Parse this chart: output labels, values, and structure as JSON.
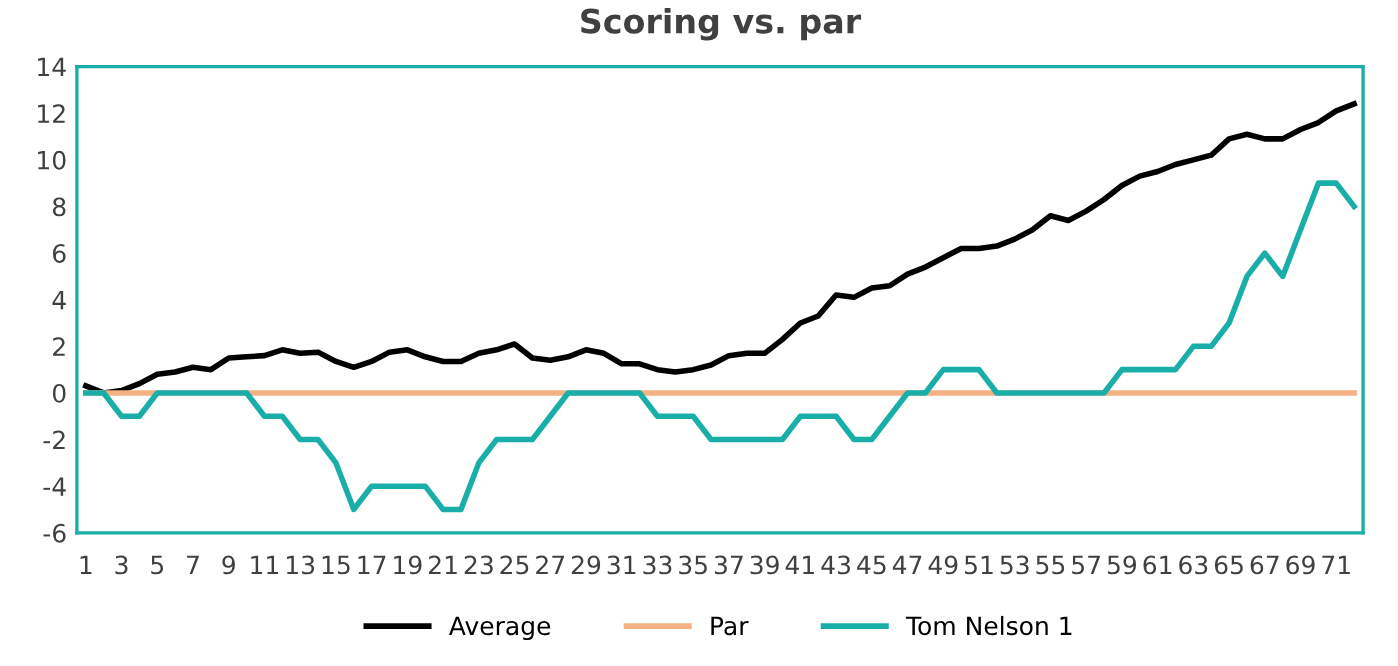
{
  "chart_data": {
    "type": "line",
    "title": "Scoring vs. par",
    "categories": [
      "1",
      null,
      "3",
      null,
      "5",
      null,
      "7",
      null,
      "9",
      null,
      "11",
      null,
      "13",
      null,
      "15",
      null,
      "17",
      null,
      "19",
      null,
      "21",
      null,
      "23",
      null,
      "25",
      null,
      "27",
      null,
      "29",
      null,
      "31",
      null,
      "33",
      null,
      "35",
      null,
      "37",
      null,
      "39",
      null,
      "41",
      null,
      "43",
      null,
      "45",
      null,
      "47",
      null,
      "49",
      null,
      "51",
      null,
      "53",
      null,
      "55",
      null,
      "57",
      null,
      "59",
      null,
      "61",
      null,
      "63",
      null,
      "65",
      null,
      "67",
      null,
      "69",
      null,
      "71",
      null
    ],
    "series": [
      {
        "name": "Average",
        "color": "#000000",
        "values": [
          0.3,
          0,
          0.1,
          0.4,
          0.8,
          0.9,
          1.1,
          1.0,
          1.5,
          1.55,
          1.6,
          1.85,
          1.7,
          1.75,
          1.35,
          1.1,
          1.35,
          1.75,
          1.85,
          1.55,
          1.35,
          1.35,
          1.7,
          1.85,
          2.1,
          1.5,
          1.4,
          1.55,
          1.85,
          1.7,
          1.25,
          1.25,
          1.0,
          0.9,
          1.0,
          1.2,
          1.6,
          1.7,
          1.7,
          2.3,
          3.0,
          3.3,
          4.2,
          4.1,
          4.5,
          4.6,
          5.1,
          5.4,
          5.8,
          6.2,
          6.2,
          6.3,
          6.6,
          7.0,
          7.6,
          7.4,
          7.8,
          8.3,
          8.9,
          9.3,
          9.5,
          9.8,
          10.0,
          10.2,
          10.9,
          11.1,
          10.9,
          10.9,
          11.3,
          11.6,
          12.1,
          12.4
        ]
      },
      {
        "name": "Par",
        "color": "#f4b183",
        "values": [
          0,
          0,
          0,
          0,
          0,
          0,
          0,
          0,
          0,
          0,
          0,
          0,
          0,
          0,
          0,
          0,
          0,
          0,
          0,
          0,
          0,
          0,
          0,
          0,
          0,
          0,
          0,
          0,
          0,
          0,
          0,
          0,
          0,
          0,
          0,
          0,
          0,
          0,
          0,
          0,
          0,
          0,
          0,
          0,
          0,
          0,
          0,
          0,
          0,
          0,
          0,
          0,
          0,
          0,
          0,
          0,
          0,
          0,
          0,
          0,
          0,
          0,
          0,
          0,
          0,
          0,
          0,
          0,
          0,
          0,
          0,
          0
        ]
      },
      {
        "name": "Tom Nelson 1",
        "color": "#1aaea8",
        "values": [
          0,
          0,
          -1,
          -1,
          0,
          0,
          0,
          0,
          0,
          0,
          -1,
          -1,
          -2,
          -2,
          -3,
          -5,
          -4,
          -4,
          -4,
          -4,
          -5,
          -5,
          -3,
          -2,
          -2,
          -2,
          -1,
          0,
          0,
          0,
          0,
          0,
          -1,
          -1,
          -1,
          -2,
          -2,
          -2,
          -2,
          -2,
          -1,
          -1,
          -1,
          -2,
          -2,
          -1,
          0,
          0,
          1,
          1,
          1,
          0,
          0,
          0,
          0,
          0,
          0,
          0,
          1,
          1,
          1,
          1,
          2,
          2,
          3,
          5,
          6,
          5,
          7,
          9,
          9,
          8
        ]
      }
    ],
    "ylim": [
      -6,
      14
    ],
    "yticks": [
      -6,
      -4,
      -2,
      0,
      2,
      4,
      6,
      8,
      10,
      12,
      14
    ],
    "grid": false,
    "legend": "bottom",
    "marker": "none",
    "line_style": "solid"
  }
}
